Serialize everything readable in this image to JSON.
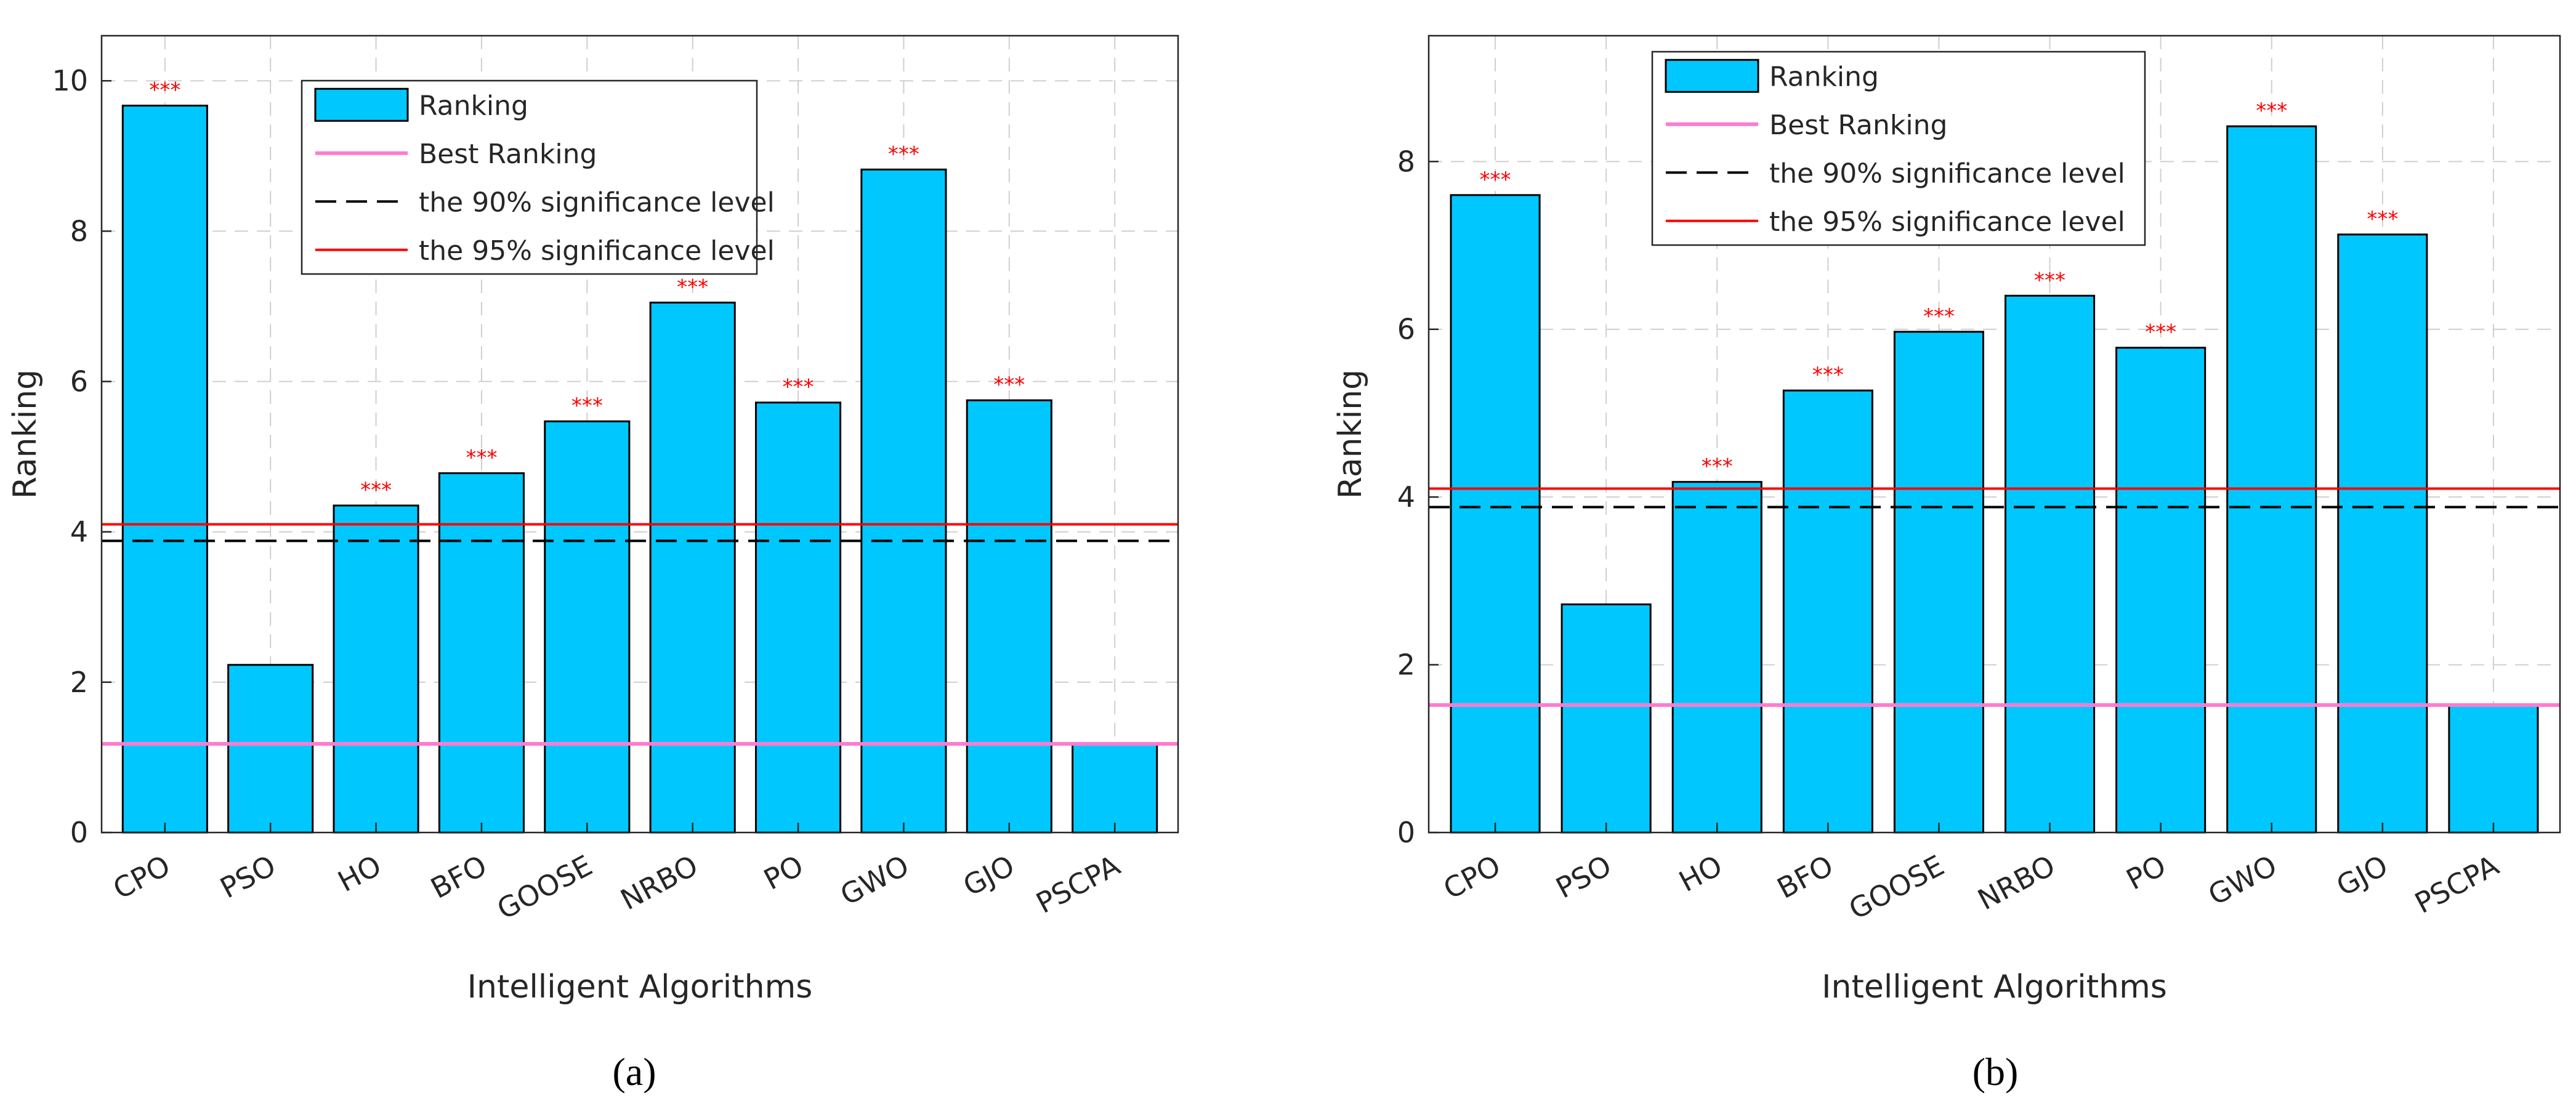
{
  "chart_data": [
    {
      "id": "a",
      "type": "bar",
      "caption": "(a)",
      "xlabel": "Intelligent Algorithms",
      "ylabel": "Ranking",
      "categories": [
        "CPO",
        "PSO",
        "HO",
        "BFO",
        "GOOSE",
        "NRBO",
        "PO",
        "GWO",
        "GJO",
        "PSCPA"
      ],
      "values": [
        9.67,
        2.23,
        4.35,
        4.78,
        5.47,
        7.05,
        5.72,
        8.82,
        5.75,
        1.18
      ],
      "significance_markers": [
        "***",
        "",
        "***",
        "***",
        "***",
        "***",
        "***",
        "***",
        "***",
        ""
      ],
      "ylim": [
        0,
        10.6
      ],
      "yticks": [
        0,
        2,
        4,
        6,
        8,
        10
      ],
      "reference_lines": [
        {
          "label": "Best Ranking",
          "value": 1.18,
          "color": "#ff7bd0",
          "style": "solid"
        },
        {
          "label": "the 90% significance level",
          "value": 3.88,
          "color": "#000000",
          "style": "dashed"
        },
        {
          "label": "the 95% significance level",
          "value": 4.1,
          "color": "#ff0000",
          "style": "solid"
        }
      ],
      "legend": {
        "position": "top-right",
        "entries": [
          "Ranking",
          "Best Ranking",
          "the 90% significance level",
          "the 95% significance level"
        ]
      },
      "grid": true,
      "colors": {
        "bar": "#00c8ff",
        "bar_edge": "#000000",
        "marker": "#ff0000"
      }
    },
    {
      "id": "b",
      "type": "bar",
      "caption": "(b)",
      "xlabel": "Intelligent Algorithms",
      "ylabel": "Ranking",
      "categories": [
        "CPO",
        "PSO",
        "HO",
        "BFO",
        "GOOSE",
        "NRBO",
        "PO",
        "GWO",
        "GJO",
        "PSCPA"
      ],
      "values": [
        7.6,
        2.72,
        4.18,
        5.27,
        5.97,
        6.4,
        5.78,
        8.42,
        7.13,
        1.52
      ],
      "significance_markers": [
        "***",
        "",
        "***",
        "***",
        "***",
        "***",
        "***",
        "***",
        "***",
        ""
      ],
      "ylim": [
        0,
        9.5
      ],
      "yticks": [
        0,
        2,
        4,
        6,
        8
      ],
      "reference_lines": [
        {
          "label": "Best Ranking",
          "value": 1.52,
          "color": "#ff7bd0",
          "style": "solid"
        },
        {
          "label": "the 90% significance level",
          "value": 3.88,
          "color": "#000000",
          "style": "dashed"
        },
        {
          "label": "the 95% significance level",
          "value": 4.1,
          "color": "#ff0000",
          "style": "solid"
        }
      ],
      "legend": {
        "position": "top-center",
        "entries": [
          "Ranking",
          "Best Ranking",
          "the 90% significance level",
          "the 95% significance level"
        ]
      },
      "grid": true,
      "colors": {
        "bar": "#00c8ff",
        "bar_edge": "#000000",
        "marker": "#ff0000"
      }
    }
  ]
}
